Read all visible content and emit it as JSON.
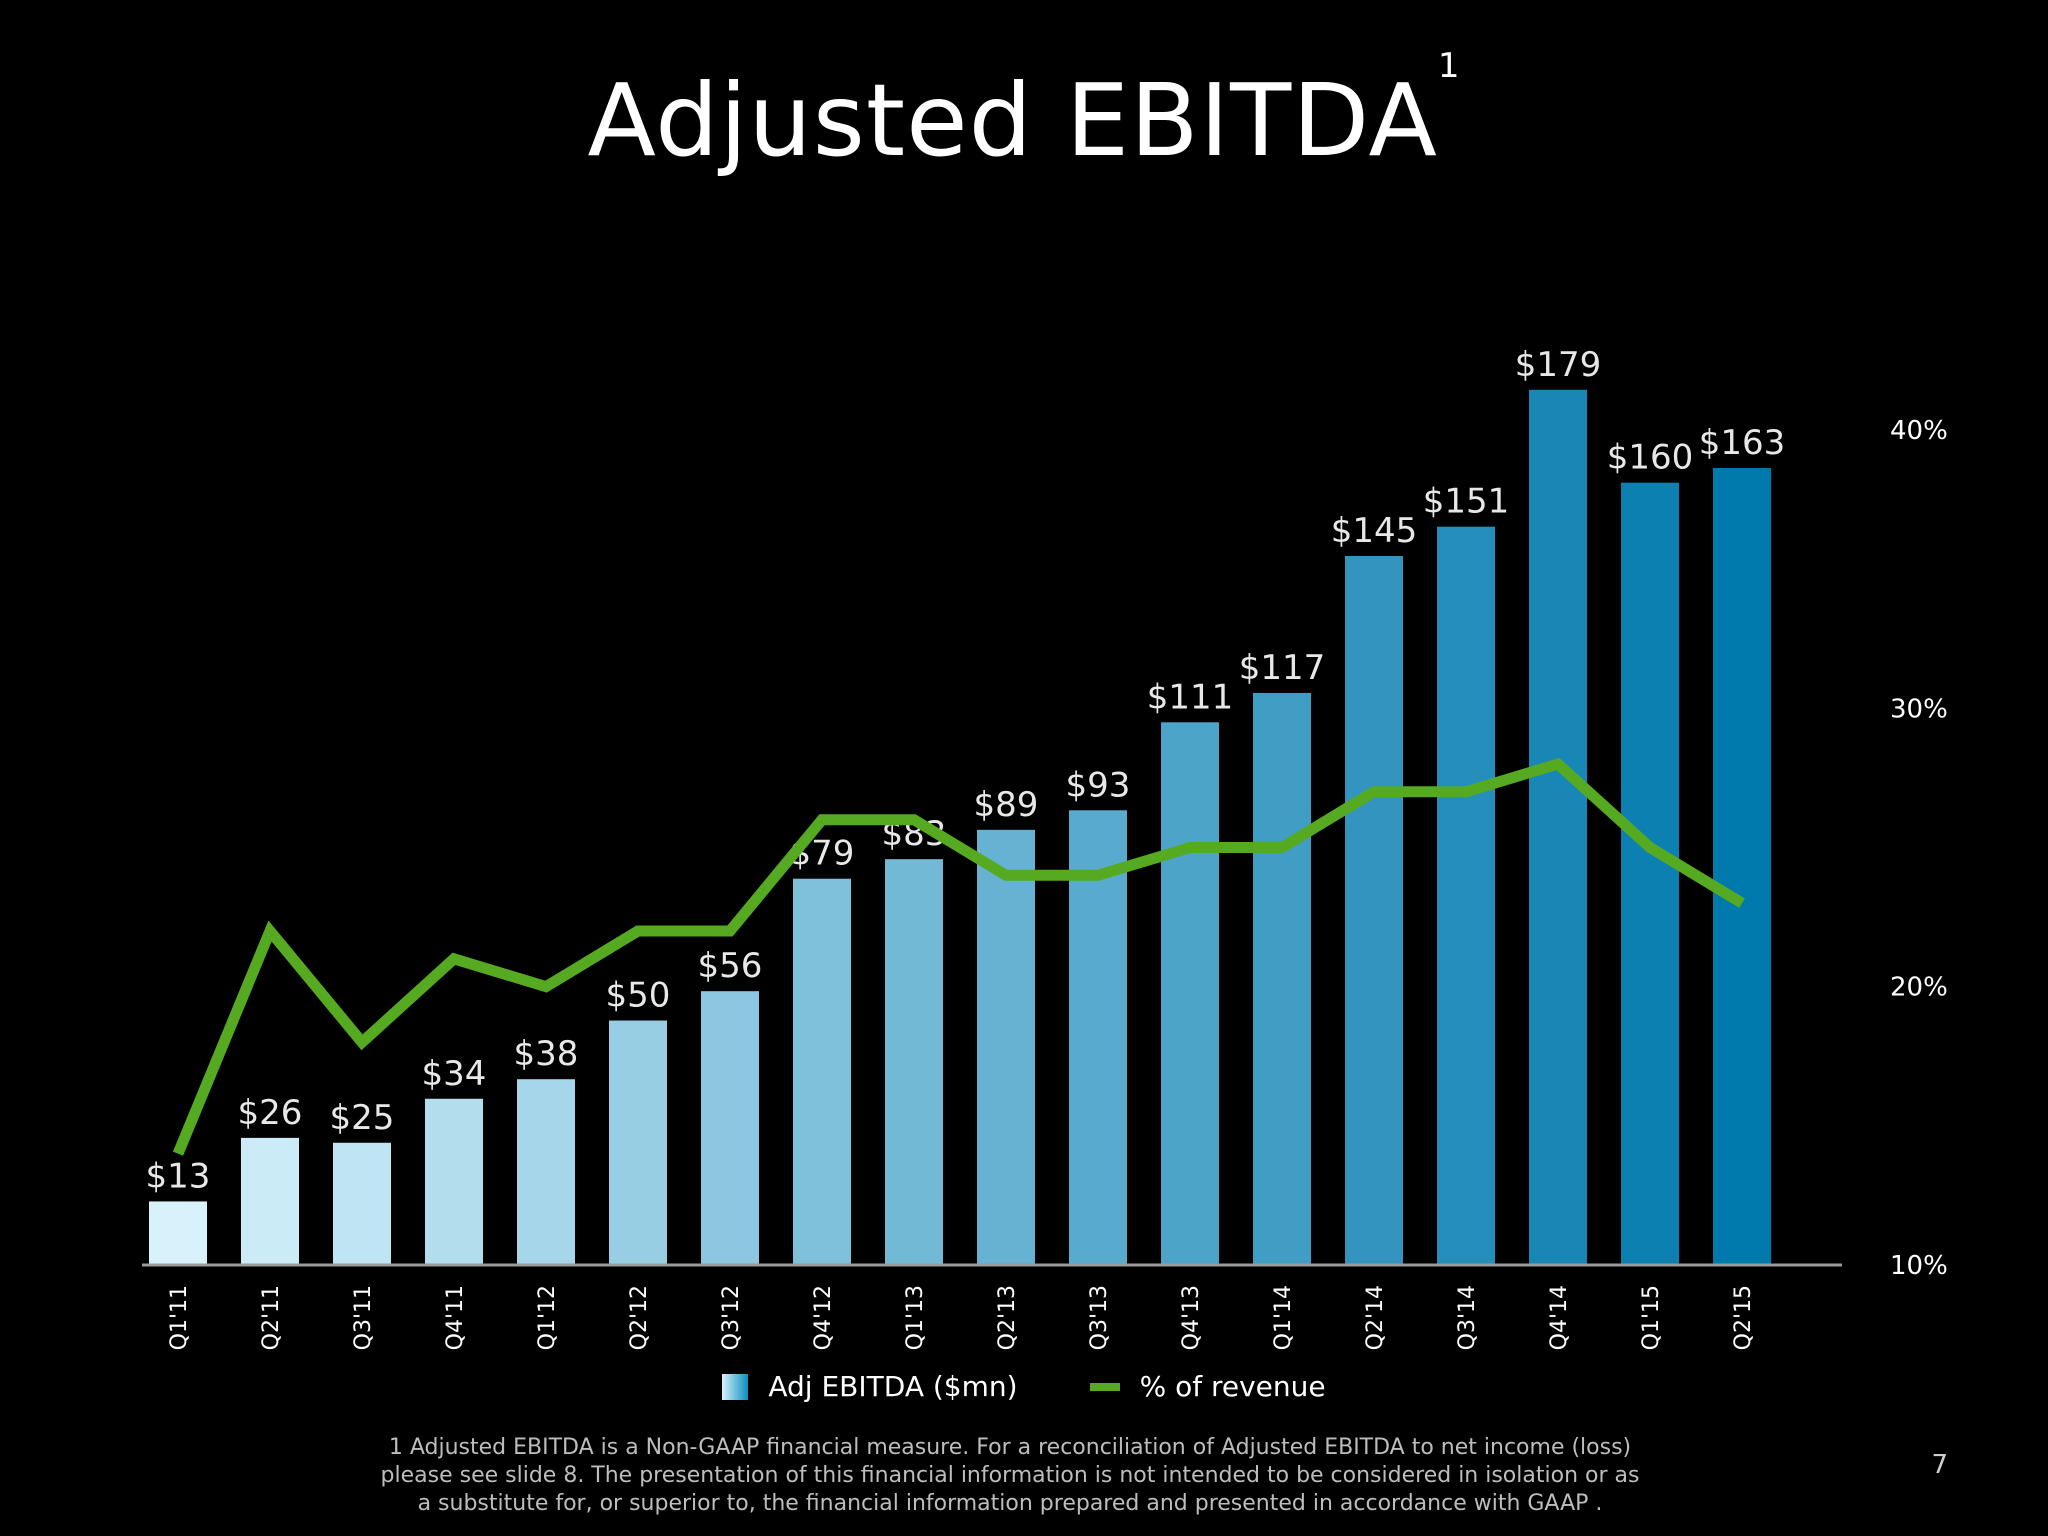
{
  "slide": {
    "title": "Adjusted EBITDA",
    "title_superscript": "1",
    "footnote": "1 Adjusted EBITDA is a Non-GAAP financial measure. For a reconciliation of Adjusted EBITDA to net income (loss) please see slide 8. The presentation of this financial information is not intended to be considered in isolation or as a substitute for, or superior to, the financial information prepared and presented in accordance with GAAP .",
    "page_number": "7"
  },
  "legend": {
    "bar_label": "Adj EBITDA ($mn)",
    "line_label": "% of revenue"
  },
  "colors": {
    "line": "#55aa22",
    "bar_light": "#d8f2fb",
    "bar_dark": "#0079ad",
    "axis": "#9a9a9a"
  },
  "chart_data": {
    "type": "bar",
    "title": "Adjusted EBITDA",
    "categories": [
      "Q1'11",
      "Q2'11",
      "Q3'11",
      "Q4'11",
      "Q1'12",
      "Q2'12",
      "Q3'12",
      "Q4'12",
      "Q1'13",
      "Q2'13",
      "Q3'13",
      "Q4'13",
      "Q1'14",
      "Q2'14",
      "Q3'14",
      "Q4'14",
      "Q1'15",
      "Q2'15"
    ],
    "series": [
      {
        "name": "Adj EBITDA ($mn)",
        "type": "bar",
        "axis": "left",
        "values": [
          13,
          26,
          25,
          34,
          38,
          50,
          56,
          79,
          83,
          89,
          93,
          111,
          117,
          145,
          151,
          179,
          160,
          163
        ],
        "data_labels": [
          "$13",
          "$26",
          "$25",
          "$34",
          "$38",
          "$50",
          "$56",
          "$79",
          "$83",
          "$89",
          "$93",
          "$111",
          "$117",
          "$145",
          "$151",
          "$179",
          "$160",
          "$163"
        ]
      },
      {
        "name": "% of revenue",
        "type": "line",
        "axis": "right",
        "values": [
          14,
          22,
          18,
          21,
          20,
          22,
          22,
          26,
          26,
          24,
          24,
          25,
          25,
          27,
          27,
          28,
          25,
          23
        ]
      }
    ],
    "ylim": [
      0,
      181
    ],
    "y2lim": [
      10,
      40
    ],
    "y2ticks": [
      "10%",
      "20%",
      "30%",
      "40%"
    ],
    "y2tick_values": [
      10,
      20,
      30,
      40
    ],
    "legend_position": "bottom",
    "grid": false
  }
}
